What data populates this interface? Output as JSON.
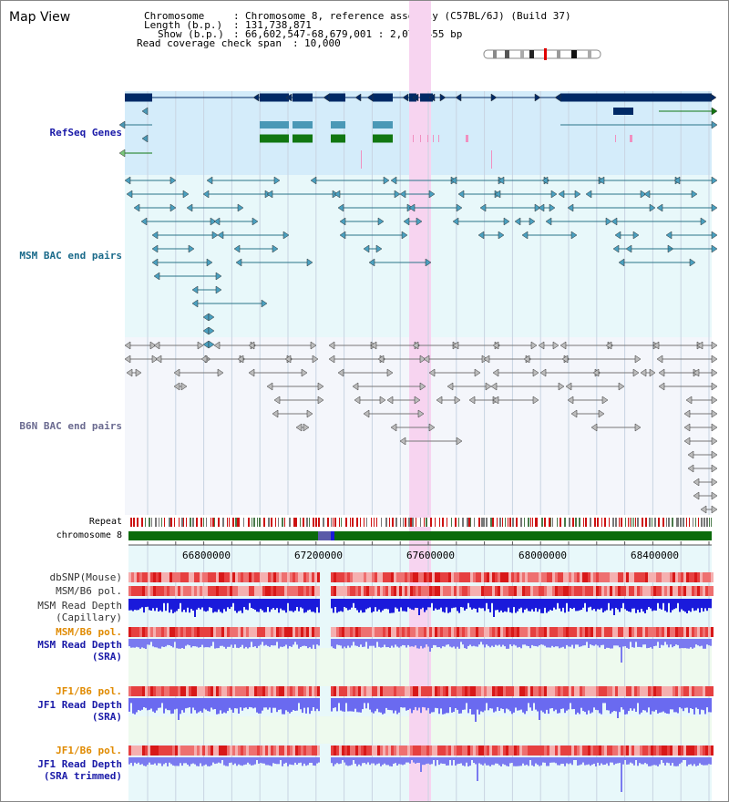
{
  "title": "Map View",
  "info": {
    "chromosome_key": "Chromosome",
    "chromosome_val": "Chromosome 8, reference assembly (C57BL/6J) (Build 37)",
    "length_key": "Length (b.p.)",
    "length_val": "131,738,871",
    "show_key": "Show (b.p.)",
    "show_val": "66,602,547-68,679,001 : 2,076,455 bp",
    "span_key": "Read coverage check span",
    "span_val": "10,000"
  },
  "tracks": {
    "refseq": "RefSeq Genes",
    "msm_bac": "MSM BAC end pairs",
    "b6n_bac": "B6N BAC end pairs",
    "repeat": "Repeat",
    "chromosome": "chromosome 8",
    "dbsnp": "dbSNP(Mouse)",
    "msm_b6_pol_1": "MSM/B6 pol.",
    "msm_read_depth_cap_1": "MSM Read Depth",
    "msm_read_depth_cap_2": "(Capillary)",
    "msm_b6_pol_2": "MSM/B6 pol.",
    "msm_read_depth_sra_1": "MSM Read Depth",
    "msm_read_depth_sra_2": "(SRA)",
    "jf1_b6_pol_1": "JF1/B6 pol.",
    "jf1_read_depth_sra_1": "JF1 Read Depth",
    "jf1_read_depth_sra_2": "(SRA)",
    "jf1_b6_pol_2": "JF1/B6 pol.",
    "jf1_read_depth_trim_1": "JF1 Read Depth",
    "jf1_read_depth_trim_2": "(SRA trimmed)"
  },
  "axis": {
    "ticks": [
      "66800000",
      "67200000",
      "67600000",
      "68000000",
      "68400000"
    ]
  },
  "colors": {
    "refseq_bg": "#d4ecfa",
    "msm_bg": "#e8f8fa",
    "b6n_bg": "#f4f6fb",
    "highlight": "#f7d4f0",
    "gene_dark": "#002a66",
    "gene_mid": "#4a98b6",
    "gene_green": "#117711",
    "bac_msm": "#2a7488",
    "bac_b6n": "#777777",
    "chrom_green": "#0b6b0b",
    "depth_blue": "#1a1adb",
    "depth_light": "#7a7af0",
    "pol_red": "#e84848",
    "label_blue": "#1a1aa8",
    "label_orange": "#e08a00"
  }
}
